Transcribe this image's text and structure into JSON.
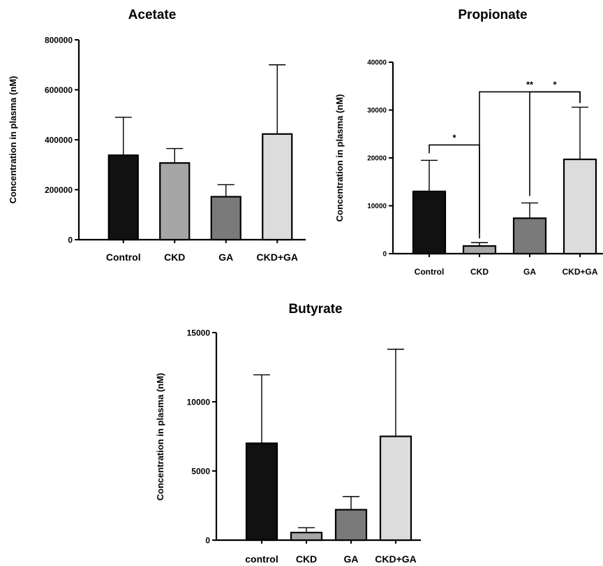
{
  "chart_data": [
    {
      "type": "bar",
      "title": "Acetate",
      "ylabel": "Concentration in plasma (nM)",
      "xlabel": "",
      "categories": [
        "Control",
        "CKD",
        "GA",
        "CKD+GA"
      ],
      "values": [
        338000,
        307000,
        172000,
        423000
      ],
      "error_upper": [
        490000,
        365000,
        220000,
        700000
      ],
      "ylim": [
        0,
        800000
      ],
      "yticks": [
        0,
        200000,
        400000,
        600000,
        800000
      ],
      "ytick_labels": [
        "0",
        "200000",
        "400000",
        "600000",
        "800000"
      ],
      "bar_colors": [
        "#111111",
        "#a6a6a6",
        "#7a7a7a",
        "#dcdcdc"
      ],
      "grid": false,
      "significance": []
    },
    {
      "type": "bar",
      "title": "Propionate",
      "ylabel": "Concentration in plasma (nM)",
      "xlabel": "",
      "categories": [
        "Control",
        "CKD",
        "GA",
        "CKD+GA"
      ],
      "values": [
        13000,
        1600,
        7400,
        19700
      ],
      "error_upper": [
        19500,
        2300,
        10600,
        30600
      ],
      "ylim": [
        0,
        40000
      ],
      "yticks": [
        0,
        10000,
        20000,
        30000,
        40000
      ],
      "ytick_labels": [
        "0",
        "10000",
        "20000",
        "30000",
        "40000"
      ],
      "bar_colors": [
        "#111111",
        "#a6a6a6",
        "#7a7a7a",
        "#dcdcdc"
      ],
      "grid": false,
      "significance": [
        {
          "from": 0,
          "to": 1,
          "label": "*"
        },
        {
          "from": 2,
          "to": 3,
          "label": "*"
        },
        {
          "from": 1,
          "to": 3,
          "label": "**"
        }
      ]
    },
    {
      "type": "bar",
      "title": "Butyrate",
      "ylabel": "Concentration in plasma (nM)",
      "xlabel": "",
      "categories": [
        "control",
        "CKD",
        "GA",
        "CKD+GA"
      ],
      "values": [
        7000,
        550,
        2200,
        7500
      ],
      "error_upper": [
        11950,
        900,
        3150,
        13800
      ],
      "ylim": [
        0,
        15000
      ],
      "yticks": [
        0,
        5000,
        10000,
        15000
      ],
      "ytick_labels": [
        "0",
        "5000",
        "10000",
        "15000"
      ],
      "bar_colors": [
        "#111111",
        "#a6a6a6",
        "#7a7a7a",
        "#dcdcdc"
      ],
      "grid": false,
      "significance": []
    }
  ]
}
